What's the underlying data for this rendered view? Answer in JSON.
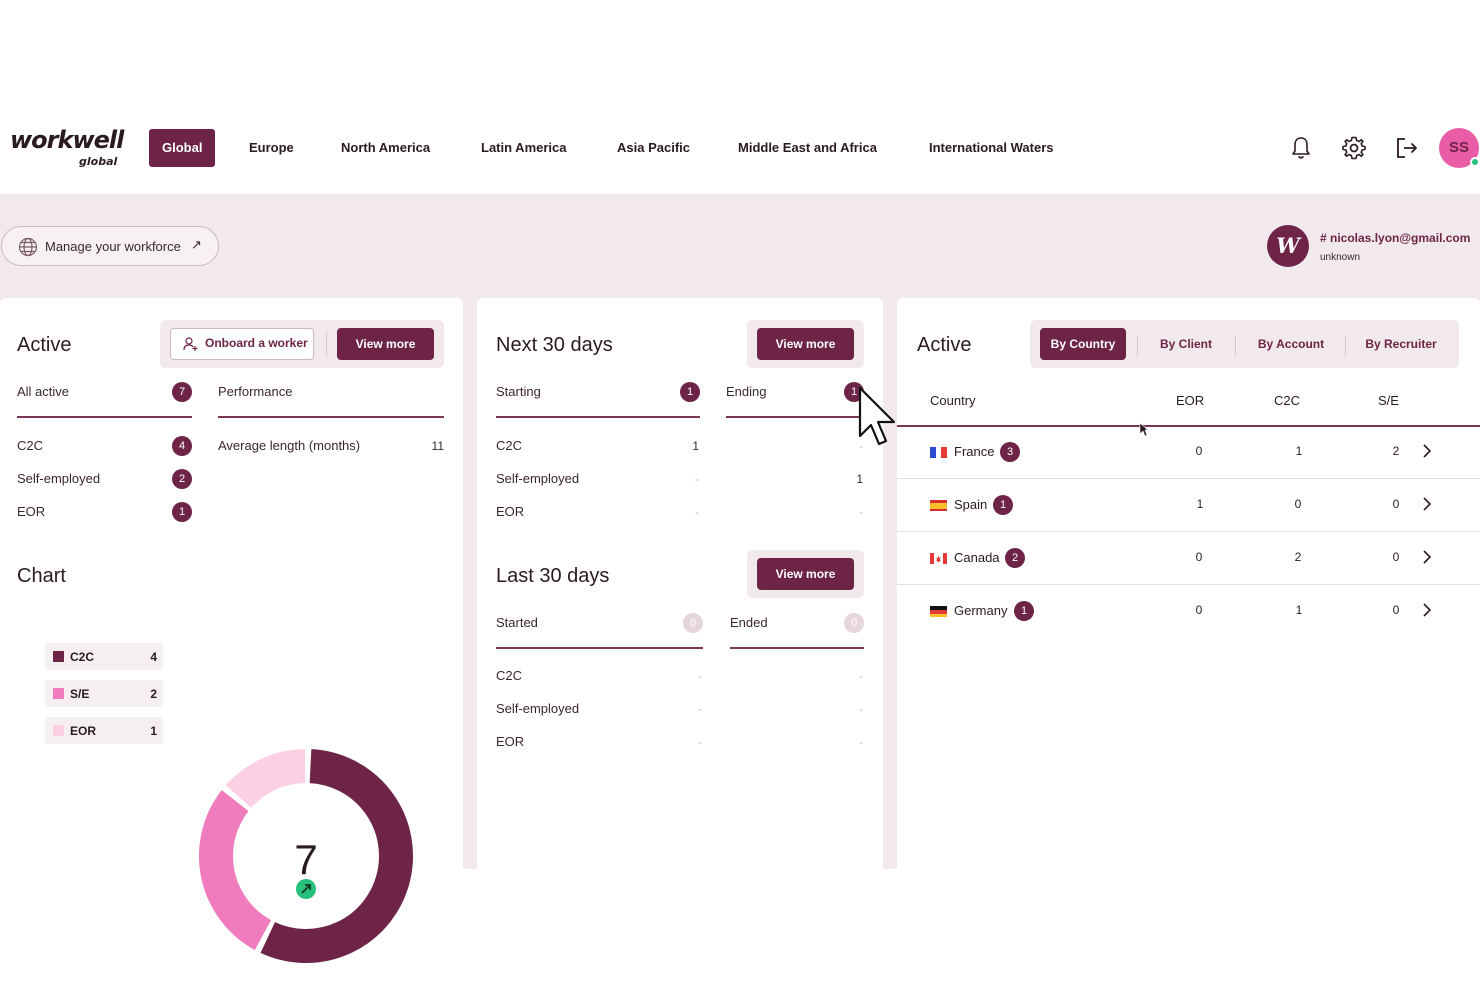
{
  "brand": {
    "name": "workwell",
    "sub": "global"
  },
  "nav": [
    {
      "label": "Global",
      "active": true
    },
    {
      "label": "Europe"
    },
    {
      "label": "North America"
    },
    {
      "label": "Latin America"
    },
    {
      "label": "Asia Pacific"
    },
    {
      "label": "Middle East and Africa"
    },
    {
      "label": "International Waters"
    }
  ],
  "top_icons": [
    "bell-icon",
    "gear-icon",
    "logout-icon"
  ],
  "avatar": {
    "initials": "SS",
    "status_color": "#27c07a"
  },
  "manage": {
    "label": "Manage your workforce",
    "arrow": "↗"
  },
  "user": {
    "badge_letter": "W",
    "email": "# nicolas.lyon@gmail.com",
    "role": "unknown"
  },
  "active_card": {
    "title": "Active",
    "onboard_label": "Onboard a worker",
    "view_more": "View more",
    "all_active": {
      "label": "All active",
      "count": "7"
    },
    "performance": {
      "label": "Performance"
    },
    "rows": [
      {
        "label": "C2C",
        "count": "4"
      },
      {
        "label": "Self-employed",
        "count": "2"
      },
      {
        "label": "EOR",
        "count": "1"
      }
    ],
    "avg_length": {
      "label": "Average length (months)",
      "value": "11"
    },
    "chart_title": "Chart"
  },
  "chart_data": {
    "type": "pie",
    "variant": "donut",
    "center_total": "7",
    "trend": "up",
    "slices": [
      {
        "name": "C2C",
        "value": 4,
        "color": "#6e2446"
      },
      {
        "name": "S/E",
        "value": 2,
        "color": "#f07bbd"
      },
      {
        "name": "EOR",
        "value": 1,
        "color": "#fbd0e5"
      }
    ]
  },
  "next_card": {
    "title": "Next 30 days",
    "view_more": "View more",
    "starting": {
      "label": "Starting",
      "count": "1"
    },
    "ending": {
      "label": "Ending",
      "count": "1"
    },
    "rows": [
      {
        "label": "C2C",
        "start": "1",
        "end": "-"
      },
      {
        "label": "Self-employed",
        "start": "-",
        "end": "1"
      },
      {
        "label": "EOR",
        "start": "-",
        "end": "-"
      }
    ]
  },
  "last_card": {
    "title": "Last 30 days",
    "view_more": "View more",
    "started": {
      "label": "Started",
      "count": "0"
    },
    "ended": {
      "label": "Ended",
      "count": "0"
    },
    "rows": [
      {
        "label": "C2C",
        "start": "-",
        "end": "-"
      },
      {
        "label": "Self-employed",
        "start": "-",
        "end": "-"
      },
      {
        "label": "EOR",
        "start": "-",
        "end": "-"
      }
    ]
  },
  "country_card": {
    "title": "Active",
    "tabs": [
      {
        "label": "By Country",
        "active": true
      },
      {
        "label": "By Client"
      },
      {
        "label": "By Account"
      },
      {
        "label": "By Recruiter"
      }
    ],
    "columns": [
      "Country",
      "EOR",
      "C2C",
      "S/E"
    ],
    "rows": [
      {
        "country": "France",
        "count": "3",
        "eor": "0",
        "c2c": "1",
        "se": "2",
        "flag": "fr"
      },
      {
        "country": "Spain",
        "count": "1",
        "eor": "1",
        "c2c": "0",
        "se": "0",
        "flag": "es"
      },
      {
        "country": "Canada",
        "count": "2",
        "eor": "0",
        "c2c": "2",
        "se": "0",
        "flag": "ca"
      },
      {
        "country": "Germany",
        "count": "1",
        "eor": "0",
        "c2c": "1",
        "se": "0",
        "flag": "de"
      }
    ]
  }
}
